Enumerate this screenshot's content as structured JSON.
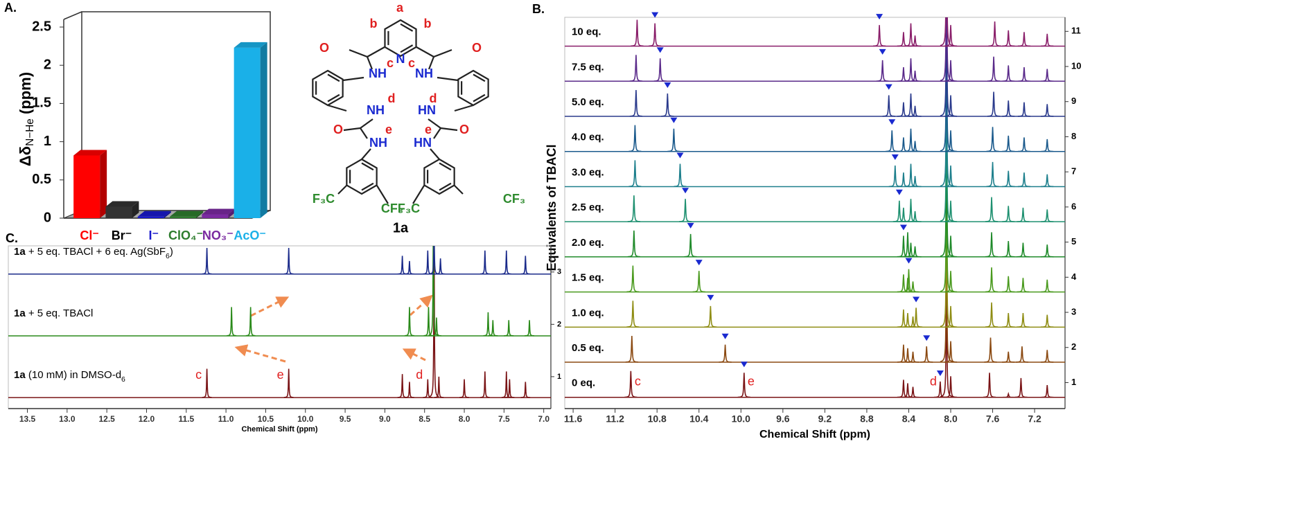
{
  "chart_data": [
    {
      "type": "bar3d",
      "panel": "A.",
      "ylabel": [
        {
          "text": "Δδ",
          "style": "bold"
        },
        {
          "text": "N−H",
          "style": "sub"
        },
        {
          "text": "e",
          "style": "sub"
        },
        {
          "text": " (ppm)",
          "style": "bold"
        }
      ],
      "categories": [
        "Cl⁻",
        "Br⁻",
        "I⁻",
        "ClO₄⁻",
        "NO₃⁻",
        "AcO⁻"
      ],
      "values": [
        0.82,
        0.15,
        0.02,
        0.02,
        0.05,
        2.23
      ],
      "colors": [
        "#ff0000",
        "#333333",
        "#1a1acc",
        "#2e7d2e",
        "#7a2aa0",
        "#1ab0e8"
      ],
      "ylim": [
        0,
        2.6
      ],
      "yticks": [
        0,
        0.5,
        1,
        1.5,
        2,
        2.5
      ]
    },
    {
      "type": "nmr",
      "panel": "B.",
      "xlabel": "Chemical Shift (ppm)",
      "ylabel": "Equivalents of TBACl",
      "xlim": [
        11.68,
        6.91
      ],
      "xticks": [
        11.6,
        11.2,
        10.8,
        10.4,
        {
          "value": 10.0,
          "label": "10.0"
        },
        9.6,
        9.2,
        8.8,
        8.4,
        {
          "value": 8.0,
          "label": "8.0"
        },
        7.6,
        7.2
      ],
      "ylim": [
        0.26,
        11.4
      ],
      "yticks": [
        1,
        2,
        3,
        4,
        5,
        6,
        7,
        8,
        9,
        10,
        11
      ],
      "peak_labels": [
        "c",
        "e",
        "d"
      ],
      "series": [
        {
          "name": "0 eq.",
          "color": "#7a1416",
          "peaks": [
            11.05,
            9.97,
            8.1,
            8.45,
            8.41,
            8.36,
            8.04,
            8.0,
            7.63,
            7.45,
            7.33,
            7.08
          ],
          "heights": [
            0.75,
            0.7,
            0.45,
            0.5,
            0.4,
            0.3,
            3.2,
            0.6,
            0.7,
            0.1,
            0.55,
            0.35
          ]
        },
        {
          "name": "0.5 eq.",
          "color": "#8b4a12",
          "peaks": [
            11.04,
            10.15,
            8.23,
            8.45,
            8.41,
            8.36,
            8.04,
            8.0,
            7.62,
            7.45,
            7.32,
            7.08
          ],
          "heights": [
            0.75,
            0.5,
            0.45,
            0.5,
            0.4,
            0.3,
            3.2,
            0.6,
            0.7,
            0.3,
            0.45,
            0.35
          ]
        },
        {
          "name": "1.0 eq.",
          "color": "#8f8d14",
          "peaks": [
            11.03,
            10.29,
            8.33,
            8.45,
            8.41,
            8.36,
            8.04,
            8.0,
            7.61,
            7.45,
            7.31,
            7.08
          ],
          "heights": [
            0.75,
            0.6,
            0.55,
            0.5,
            0.4,
            0.3,
            3.2,
            0.6,
            0.7,
            0.4,
            0.4,
            0.35
          ]
        },
        {
          "name": "1.5 eq.",
          "color": "#4a9a1e",
          "peaks": [
            11.03,
            10.4,
            8.4,
            8.45,
            8.41,
            8.36,
            8.04,
            8.0,
            7.61,
            7.45,
            7.31,
            7.08
          ],
          "heights": [
            0.75,
            0.6,
            0.65,
            0.5,
            0.4,
            0.3,
            3.2,
            0.6,
            0.7,
            0.45,
            0.4,
            0.35
          ]
        },
        {
          "name": "2.0 eq.",
          "color": "#1f8a2a",
          "peaks": [
            11.02,
            10.48,
            8.45,
            8.41,
            8.38,
            8.34,
            8.04,
            8.0,
            7.61,
            7.45,
            7.31,
            7.08
          ],
          "heights": [
            0.75,
            0.65,
            0.6,
            0.7,
            0.4,
            0.3,
            3.2,
            0.6,
            0.7,
            0.45,
            0.4,
            0.35
          ]
        },
        {
          "name": "2.5 eq.",
          "color": "#1e9070",
          "peaks": [
            11.02,
            10.53,
            8.49,
            8.45,
            8.38,
            8.34,
            8.04,
            8.0,
            7.61,
            7.45,
            7.31,
            7.08
          ],
          "heights": [
            0.75,
            0.65,
            0.6,
            0.4,
            0.65,
            0.3,
            3.2,
            0.6,
            0.7,
            0.45,
            0.4,
            0.35
          ]
        },
        {
          "name": "3.0 eq.",
          "color": "#1d7f8c",
          "peaks": [
            11.01,
            10.58,
            8.53,
            8.45,
            8.38,
            8.34,
            8.04,
            8.0,
            7.6,
            7.45,
            7.3,
            7.08
          ],
          "heights": [
            0.75,
            0.65,
            0.6,
            0.4,
            0.65,
            0.3,
            3.2,
            0.6,
            0.7,
            0.45,
            0.4,
            0.35
          ]
        },
        {
          "name": "4.0 eq.",
          "color": "#1b5a8c",
          "peaks": [
            11.01,
            10.64,
            8.56,
            8.45,
            8.38,
            8.34,
            8.04,
            8.0,
            7.6,
            7.45,
            7.3,
            7.08
          ],
          "heights": [
            0.75,
            0.65,
            0.6,
            0.4,
            0.65,
            0.3,
            3.2,
            0.6,
            0.7,
            0.45,
            0.4,
            0.35
          ]
        },
        {
          "name": "5.0 eq.",
          "color": "#2a3a8c",
          "peaks": [
            11.0,
            10.7,
            8.59,
            8.45,
            8.38,
            8.34,
            8.04,
            8.0,
            7.59,
            7.45,
            7.3,
            7.08
          ],
          "heights": [
            0.75,
            0.65,
            0.6,
            0.4,
            0.65,
            0.3,
            3.2,
            0.6,
            0.7,
            0.45,
            0.4,
            0.35
          ]
        },
        {
          "name": "7.5 eq.",
          "color": "#5a2a8a",
          "peaks": [
            11.0,
            10.77,
            8.65,
            8.45,
            8.38,
            8.34,
            8.04,
            8.0,
            7.59,
            7.45,
            7.3,
            7.08
          ],
          "heights": [
            0.75,
            0.65,
            0.6,
            0.4,
            0.65,
            0.3,
            3.2,
            0.6,
            0.7,
            0.45,
            0.4,
            0.35
          ]
        },
        {
          "name": "10 eq.",
          "color": "#8a1f6a",
          "peaks": [
            10.99,
            10.82,
            8.68,
            8.45,
            8.38,
            8.34,
            8.04,
            8.0,
            7.58,
            7.45,
            7.3,
            7.08
          ],
          "heights": [
            0.75,
            0.65,
            0.6,
            0.4,
            0.65,
            0.3,
            3.2,
            0.6,
            0.7,
            0.45,
            0.4,
            0.35
          ]
        }
      ]
    },
    {
      "type": "nmr",
      "panel": "C.",
      "xlabel": "Chemical Shift (ppm)",
      "xlim": [
        13.74,
        6.91
      ],
      "xticks": [
        13.5,
        {
          "value": 13.0,
          "label": "13.0"
        },
        12.5,
        {
          "value": 12.0,
          "label": "12.0"
        },
        11.5,
        {
          "value": 11.0,
          "label": "11.0"
        },
        10.5,
        {
          "value": 10.0,
          "label": "10.0"
        },
        9.5,
        {
          "value": 9.0,
          "label": "9.0"
        },
        8.5,
        {
          "value": 8.0,
          "label": "8.0"
        },
        7.5,
        {
          "value": 7.0,
          "label": "7.0"
        }
      ],
      "ylim": [
        0.39,
        3.5
      ],
      "yticks": [
        1,
        2,
        3
      ],
      "peak_labels": [
        "c",
        "e",
        "d"
      ],
      "series": [
        {
          "label": [
            {
              "text": "1a",
              "style": "bold"
            },
            {
              "text": " (10 mM) in DMSO-d",
              "style": "normal"
            },
            {
              "text": "6",
              "style": "sub"
            }
          ],
          "color": "#7a1416",
          "peaks": [
            11.24,
            10.21,
            8.46,
            8.78,
            8.69,
            8.38,
            8.32,
            8.0,
            7.74,
            7.47,
            7.43,
            7.23
          ],
          "heights": [
            0.55,
            0.55,
            0.35,
            0.45,
            0.3,
            2.9,
            0.4,
            0.35,
            0.5,
            0.5,
            0.35,
            0.3
          ]
        },
        {
          "label": [
            {
              "text": "1a",
              "style": "bold"
            },
            {
              "text": " + 5 eq. TBACl",
              "style": "normal"
            }
          ],
          "color": "#2a8a1a",
          "peaks": [
            10.93,
            10.69,
            8.69,
            8.45,
            8.39,
            8.35,
            7.7,
            7.64,
            7.44,
            7.18
          ],
          "heights": [
            0.55,
            0.55,
            0.55,
            0.55,
            2.0,
            0.35,
            0.45,
            0.3,
            0.3,
            0.3
          ]
        },
        {
          "label": [
            {
              "text": "1a",
              "style": "bold"
            },
            {
              "text": " + 5 eq. TBACl + 6 eq. Ag(SbF",
              "style": "normal"
            },
            {
              "text": "6",
              "style": "sub"
            },
            {
              "text": ")",
              "style": "normal"
            }
          ],
          "color": "#1a2a8a",
          "peaks": [
            11.24,
            10.21,
            8.78,
            8.69,
            8.46,
            8.38,
            8.3,
            7.74,
            7.47,
            7.23
          ],
          "heights": [
            0.5,
            0.5,
            0.35,
            0.25,
            0.45,
            0.75,
            0.3,
            0.45,
            0.45,
            0.35
          ]
        }
      ]
    }
  ],
  "structure": {
    "name": "1a",
    "labels": [
      "a",
      "b",
      "b",
      "O",
      "O",
      "NH",
      "c",
      "N",
      "c",
      "NH",
      "NH",
      "d",
      "d",
      "HN",
      "O",
      "e",
      "e",
      "O",
      "NH",
      "HN",
      "F₃C",
      "CF₃",
      "F₃C",
      "CF₃"
    ]
  }
}
